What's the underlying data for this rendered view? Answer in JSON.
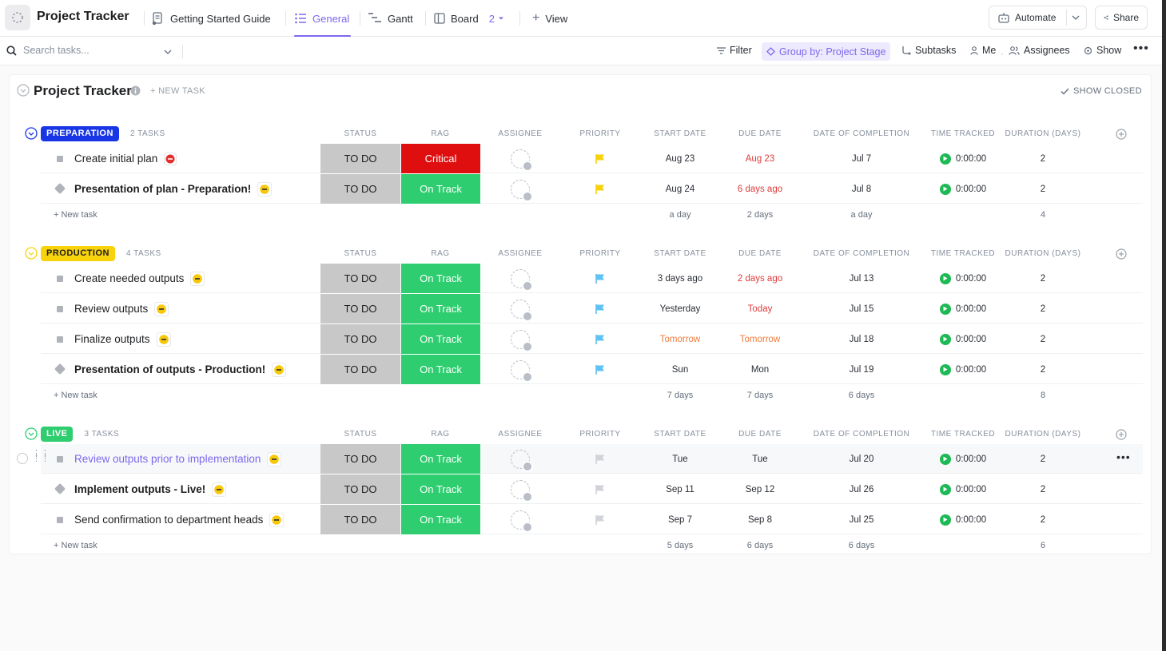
{
  "header": {
    "app_title": "Project Tracker",
    "tabs": [
      {
        "label": "Getting Started Guide",
        "active": false
      },
      {
        "label": "General",
        "active": true
      },
      {
        "label": "Gantt",
        "active": false
      },
      {
        "label": "Board",
        "active": false,
        "count": "2"
      }
    ],
    "add_view_label": "View",
    "automate_label": "Automate",
    "share_label": "Share"
  },
  "toolbar": {
    "search_placeholder": "Search tasks...",
    "filter_label": "Filter",
    "group_by_label": "Group by: Project Stage",
    "subtasks_label": "Subtasks",
    "me_label": "Me",
    "assignees_label": "Assignees",
    "show_label": "Show"
  },
  "list": {
    "title": "Project Tracker",
    "new_task_label": "+ NEW TASK",
    "show_closed_label": "SHOW CLOSED"
  },
  "columns": [
    "STATUS",
    "RAG",
    "ASSIGNEE",
    "PRIORITY",
    "START DATE",
    "DUE DATE",
    "DATE OF COMPLETION",
    "TIME TRACKED",
    "DURATION (DAYS)"
  ],
  "new_task_row_label": "+ New task",
  "colors": {
    "accent": "#7b68ee",
    "rag_critical": "#e00f0f",
    "rag_on_track": "#2ecd6f",
    "status_todo": "#c8c8c8",
    "flag_yellow": "#f8d20b",
    "flag_blue": "#5fc2f5",
    "flag_gray": "#d0d3d8"
  },
  "groups": [
    {
      "name": "PREPARATION",
      "count_label": "2 TASKS",
      "badge_color": "#1836e6",
      "badge_text_color": "#ffffff",
      "tasks": [
        {
          "name": "Create initial plan",
          "shape": "square",
          "tag": "stop",
          "status": "TO DO",
          "rag": "Critical",
          "priority": "yellow",
          "start": "Aug 23",
          "start_style": "",
          "due": "Aug 23",
          "due_style": "red",
          "completion": "Jul 7",
          "time": "0:00:00",
          "duration": "2"
        },
        {
          "name": "Presentation of plan - Preparation!",
          "shape": "diamond",
          "bold": true,
          "tag": "minus",
          "status": "TO DO",
          "rag": "On Track",
          "priority": "yellow",
          "start": "Aug 24",
          "start_style": "",
          "due": "6 days ago",
          "due_style": "red",
          "completion": "Jul 8",
          "time": "0:00:00",
          "duration": "2"
        }
      ],
      "summary": {
        "start": "a day",
        "due": "2 days",
        "completion": "a day",
        "duration": "4"
      }
    },
    {
      "name": "PRODUCTION",
      "count_label": "4 TASKS",
      "badge_color": "#f8d20b",
      "badge_text_color": "#1e1f21",
      "tasks": [
        {
          "name": "Create needed outputs",
          "shape": "square",
          "tag": "minus",
          "status": "TO DO",
          "rag": "On Track",
          "priority": "blue",
          "start": "3 days ago",
          "start_style": "",
          "due": "2 days ago",
          "due_style": "red",
          "completion": "Jul 13",
          "time": "0:00:00",
          "duration": "2"
        },
        {
          "name": "Review outputs",
          "shape": "square",
          "tag": "minus",
          "status": "TO DO",
          "rag": "On Track",
          "priority": "blue",
          "start": "Yesterday",
          "start_style": "",
          "due": "Today",
          "due_style": "red",
          "completion": "Jul 15",
          "time": "0:00:00",
          "duration": "2"
        },
        {
          "name": "Finalize outputs",
          "shape": "square",
          "tag": "minus",
          "status": "TO DO",
          "rag": "On Track",
          "priority": "blue",
          "start": "Tomorrow",
          "start_style": "orange",
          "due": "Tomorrow",
          "due_style": "orange",
          "completion": "Jul 18",
          "time": "0:00:00",
          "duration": "2"
        },
        {
          "name": "Presentation of outputs - Production!",
          "shape": "diamond",
          "bold": true,
          "tag": "minus",
          "status": "TO DO",
          "rag": "On Track",
          "priority": "blue",
          "start": "Sun",
          "start_style": "",
          "due": "Mon",
          "due_style": "",
          "completion": "Jul 19",
          "time": "0:00:00",
          "duration": "2"
        }
      ],
      "summary": {
        "start": "7 days",
        "due": "7 days",
        "completion": "6 days",
        "duration": "8"
      }
    },
    {
      "name": "LIVE",
      "count_label": "3 TASKS",
      "badge_color": "#2ecd6f",
      "badge_text_color": "#ffffff",
      "tasks": [
        {
          "name": "Review outputs prior to implementation",
          "shape": "square",
          "link": true,
          "tag": "minus",
          "status": "TO DO",
          "rag": "On Track",
          "priority": "gray",
          "start": "Tue",
          "start_style": "",
          "due": "Tue",
          "due_style": "",
          "completion": "Jul 20",
          "time": "0:00:00",
          "duration": "2"
        },
        {
          "name": "Implement outputs - Live!",
          "shape": "diamond",
          "bold": true,
          "tag": "minus",
          "status": "TO DO",
          "rag": "On Track",
          "priority": "gray",
          "start": "Sep 11",
          "start_style": "",
          "due": "Sep 12",
          "due_style": "",
          "completion": "Jul 26",
          "time": "0:00:00",
          "duration": "2"
        },
        {
          "name": "Send confirmation to department heads",
          "shape": "square",
          "tag": "minus",
          "status": "TO DO",
          "rag": "On Track",
          "priority": "gray",
          "start": "Sep 7",
          "start_style": "",
          "due": "Sep 8",
          "due_style": "",
          "completion": "Jul 25",
          "time": "0:00:00",
          "duration": "2"
        }
      ],
      "summary": {
        "start": "5 days",
        "due": "6 days",
        "completion": "6 days",
        "duration": "6"
      }
    }
  ]
}
